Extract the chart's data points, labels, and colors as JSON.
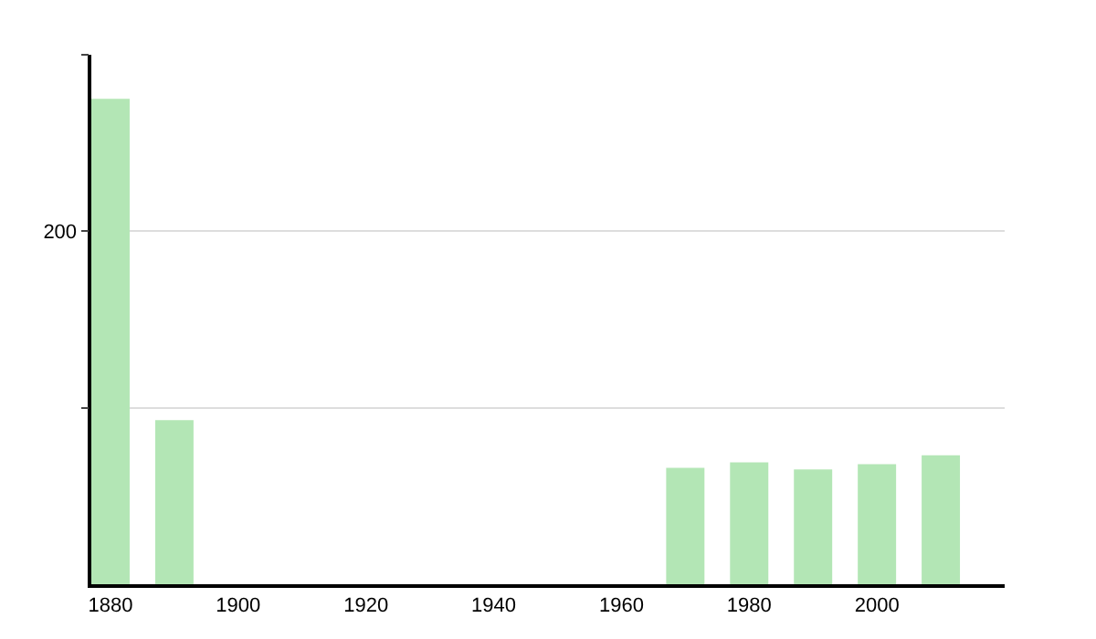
{
  "chart_data": {
    "type": "bar",
    "x": [
      1880,
      1890,
      1970,
      1980,
      1990,
      2000,
      2010
    ],
    "values": [
      275,
      93,
      66,
      69,
      65,
      68,
      73
    ],
    "color": "#b3e6b5",
    "xlim": [
      1877,
      2020
    ],
    "xticks": [
      1880,
      1900,
      1920,
      1940,
      1960,
      1980,
      2000
    ],
    "ylim": [
      0,
      300
    ],
    "yticks": [
      {
        "value": 100,
        "label": null
      },
      200,
      {
        "value": 300,
        "label": null
      }
    ],
    "grid": "y"
  }
}
